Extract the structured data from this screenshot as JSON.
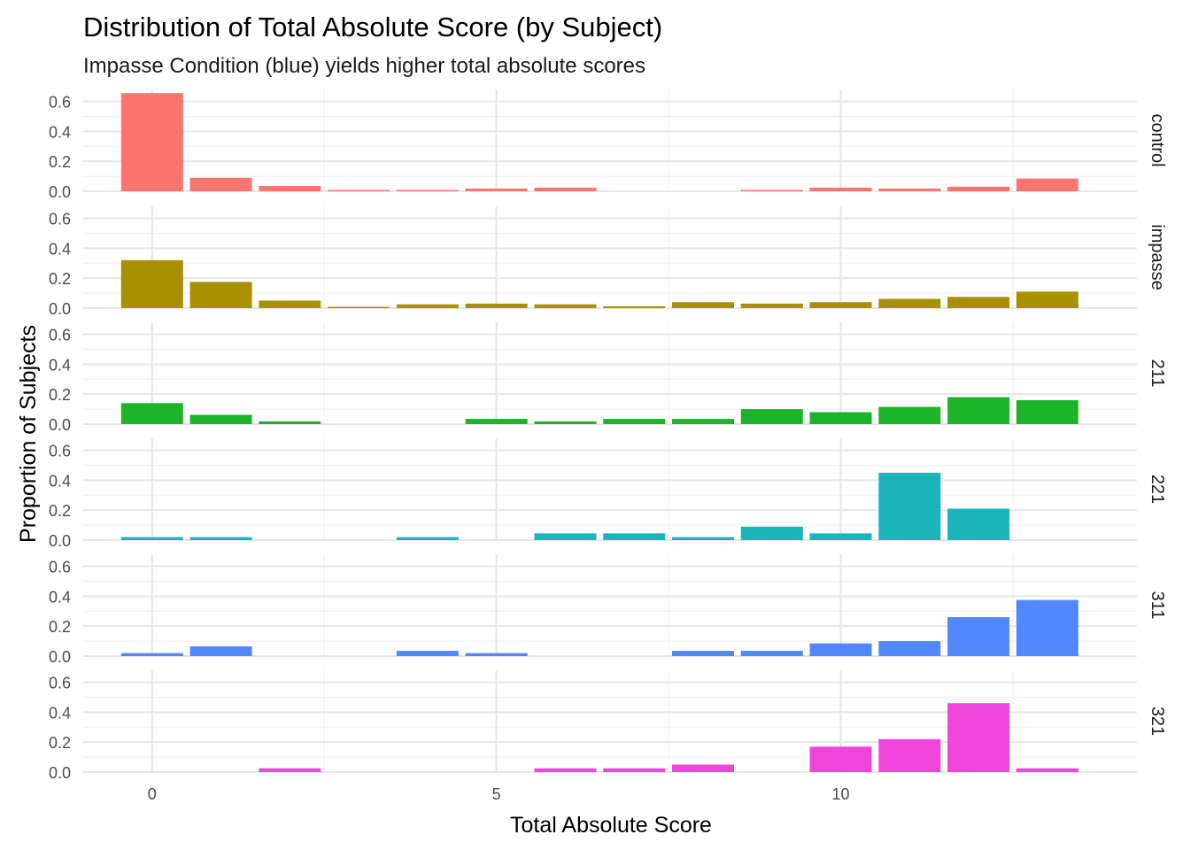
{
  "chart_data": {
    "type": "bar",
    "title": "Distribution of Total Absolute Score (by Subject)",
    "subtitle": "Impasse Condition (blue) yields higher total absolute scores",
    "xlabel": "Total Absolute Score",
    "ylabel": "Proportion of Subjects",
    "x": [
      0,
      1,
      2,
      3,
      4,
      5,
      6,
      7,
      8,
      9,
      10,
      11,
      12,
      13
    ],
    "x_ticks": [
      0,
      5,
      10
    ],
    "x_tick_labels": [
      "0",
      "5",
      "10"
    ],
    "xlim": [
      -1.0,
      14.3
    ],
    "ylim": [
      0,
      0.68
    ],
    "y_ticks": [
      0.0,
      0.2,
      0.4,
      0.6
    ],
    "y_tick_labels": [
      "0.0",
      "0.2",
      "0.4",
      "0.6"
    ],
    "grid": true,
    "legend": "none",
    "facet_strip_position": "right",
    "panels": [
      {
        "name": "control",
        "color": "#F8766D",
        "values": [
          0.655,
          0.09,
          0.035,
          0.006,
          0.006,
          0.018,
          0.024,
          0.0,
          0.0,
          0.006,
          0.024,
          0.018,
          0.03,
          0.085
        ]
      },
      {
        "name": "impasse",
        "color": "#A89000",
        "values": [
          0.32,
          0.175,
          0.05,
          0.006,
          0.025,
          0.03,
          0.025,
          0.012,
          0.04,
          0.03,
          0.04,
          0.062,
          0.075,
          0.11
        ]
      },
      {
        "name": "211",
        "color": "#1DB42A",
        "values": [
          0.14,
          0.062,
          0.018,
          0.0,
          0.0,
          0.035,
          0.018,
          0.035,
          0.035,
          0.1,
          0.08,
          0.115,
          0.18,
          0.16
        ]
      },
      {
        "name": "221",
        "color": "#1BB5B9",
        "values": [
          0.02,
          0.02,
          0.0,
          0.0,
          0.02,
          0.0,
          0.045,
          0.045,
          0.02,
          0.09,
          0.045,
          0.45,
          0.21,
          0.0
        ]
      },
      {
        "name": "311",
        "color": "#5188FF",
        "values": [
          0.02,
          0.065,
          0.0,
          0.0,
          0.035,
          0.02,
          0.0,
          0.0,
          0.035,
          0.035,
          0.085,
          0.1,
          0.26,
          0.375
        ]
      },
      {
        "name": "321",
        "color": "#EF46D9",
        "values": [
          0.0,
          0.0,
          0.025,
          0.0,
          0.0,
          0.0,
          0.025,
          0.025,
          0.05,
          0.0,
          0.17,
          0.22,
          0.46,
          0.025
        ]
      }
    ]
  }
}
